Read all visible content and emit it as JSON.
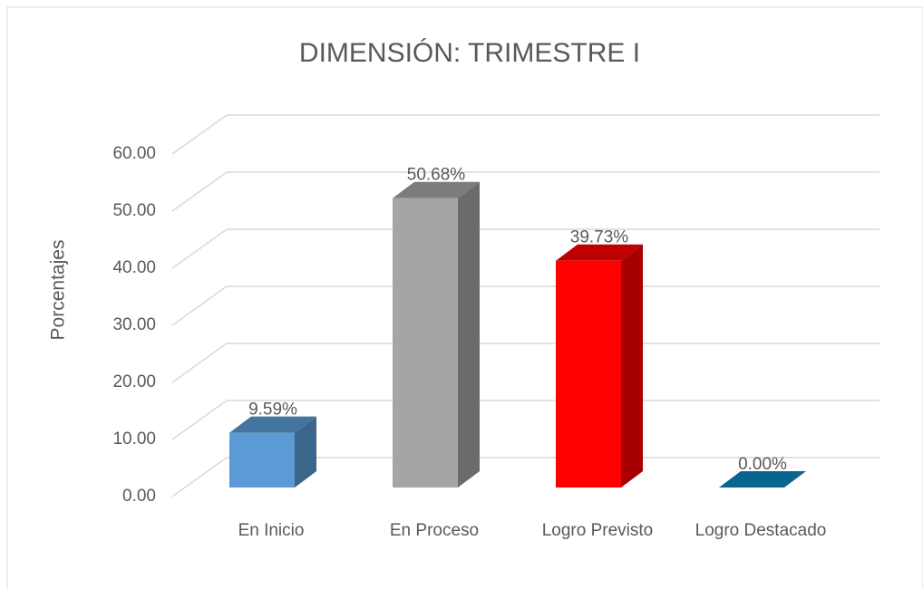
{
  "chart_data": {
    "type": "bar3d",
    "title": "DIMENSIÓN: TRIMESTRE   I",
    "y_label": "Porcentajes",
    "categories": [
      "En Inicio",
      "En Proceso",
      "Logro Previsto",
      "Logro Destacado"
    ],
    "values": [
      9.59,
      50.68,
      39.73,
      0.0
    ],
    "value_labels": [
      "9.59%",
      "50.68%",
      "39.73%",
      "0.00%"
    ],
    "colors": [
      "#5b9bd5",
      "#a5a5a5",
      "#ff0000",
      "#0a86c0"
    ],
    "ylim": [
      0,
      60
    ],
    "yticks": [
      {
        "value": 0,
        "label": "0.00"
      },
      {
        "value": 10,
        "label": "10.00"
      },
      {
        "value": 20,
        "label": "20.00"
      },
      {
        "value": 30,
        "label": "30.00"
      },
      {
        "value": 40,
        "label": "40.00"
      },
      {
        "value": 50,
        "label": "50.00"
      },
      {
        "value": 60,
        "label": "60.00"
      }
    ],
    "grid": true
  }
}
